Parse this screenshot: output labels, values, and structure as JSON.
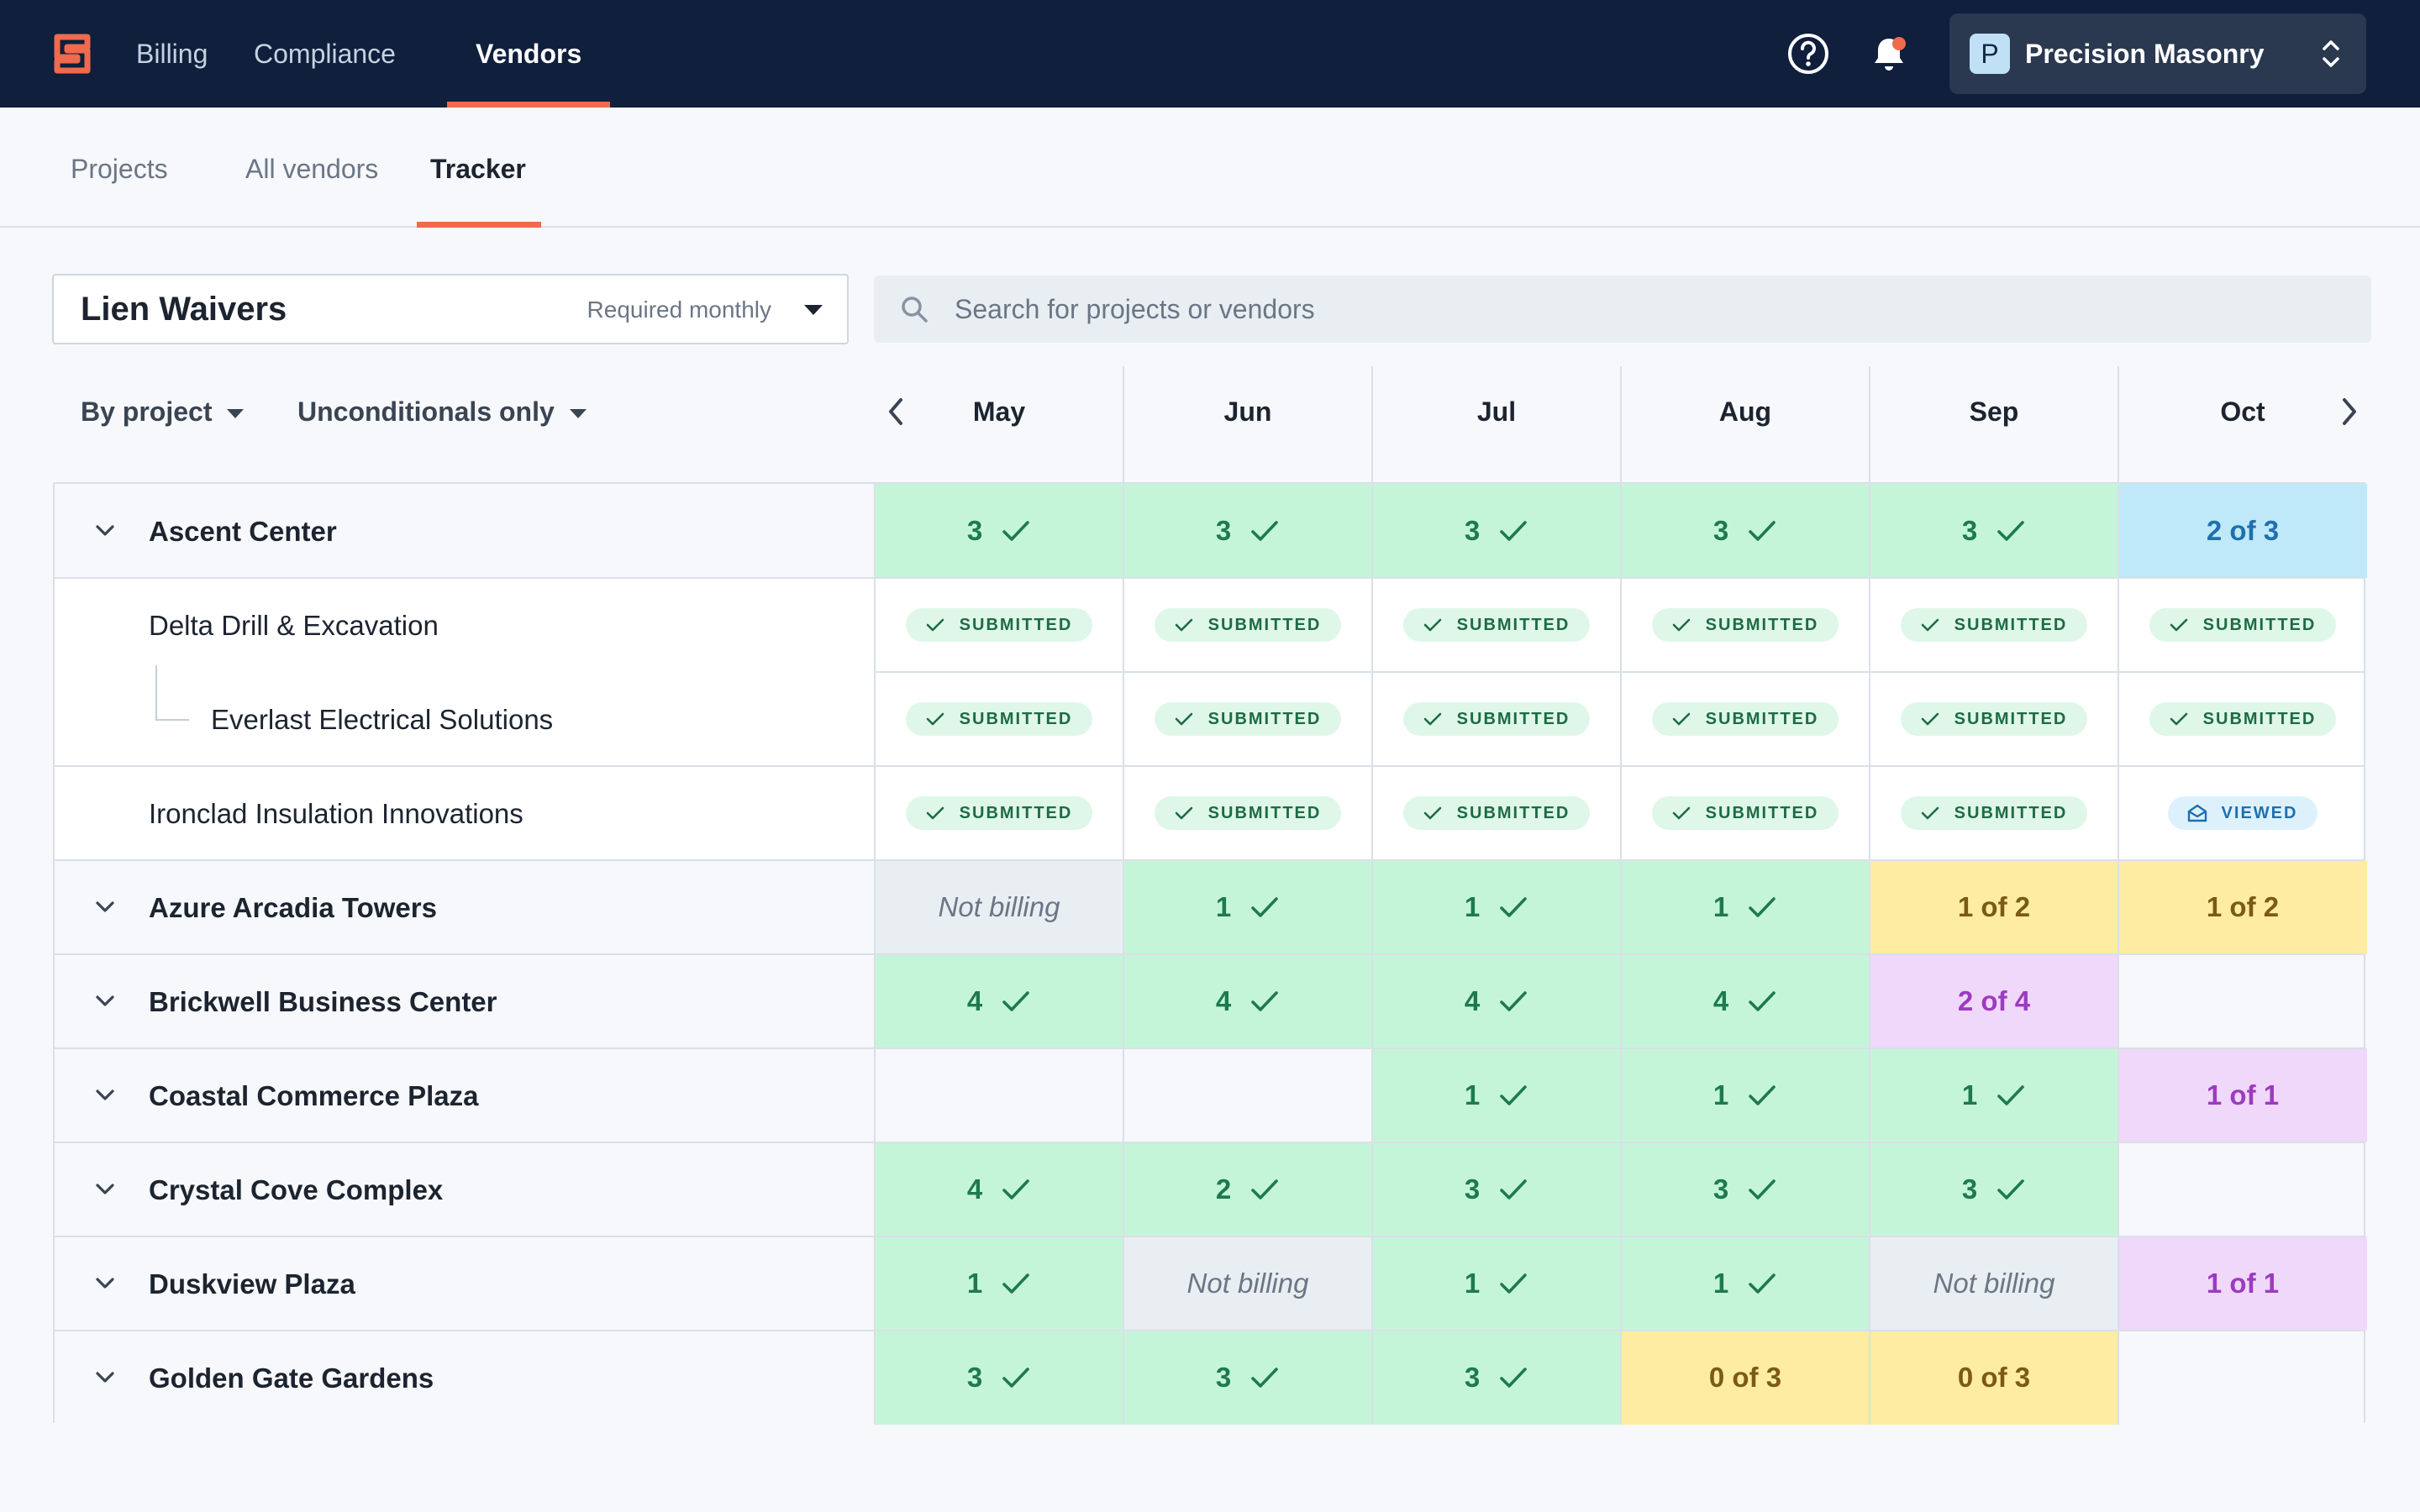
{
  "nav": {
    "items": [
      {
        "label": "Billing",
        "active": false
      },
      {
        "label": "Compliance",
        "active": false
      },
      {
        "label": "Vendors",
        "active": true
      }
    ],
    "org_initial": "P",
    "org_name": "Precision Masonry",
    "icons": [
      "logo-icon",
      "help-icon",
      "bell-icon",
      "chevron-updown-icon"
    ]
  },
  "subnav": {
    "items": [
      {
        "label": "Projects",
        "active": false
      },
      {
        "label": "All vendors",
        "active": false
      },
      {
        "label": "Tracker",
        "active": true
      }
    ]
  },
  "document_select": {
    "title": "Lien Waivers",
    "subtitle": "Required monthly"
  },
  "search": {
    "placeholder": "Search for projects or vendors",
    "value": ""
  },
  "filters": {
    "group_by": "By project",
    "waiver_type": "Unconditionals only"
  },
  "months": [
    "May",
    "Jun",
    "Jul",
    "Aug",
    "Sep",
    "Oct"
  ],
  "status_labels": {
    "submitted": "SUBMITTED",
    "viewed": "VIEWED",
    "not_billing": "Not billing"
  },
  "colors": {
    "accent": "#f06a4d",
    "navy": "#0f1f3c",
    "complete": "#c5f5d8",
    "in_progress": "#bfe9f8",
    "pending": "#fdeca2",
    "partial": "#f0d8fa",
    "not_billing": "#e9eef3"
  },
  "rows": [
    {
      "kind": "project",
      "name": "Ascent Center",
      "cells": [
        {
          "type": "complete",
          "count": "3"
        },
        {
          "type": "complete",
          "count": "3"
        },
        {
          "type": "complete",
          "count": "3"
        },
        {
          "type": "complete",
          "count": "3"
        },
        {
          "type": "complete",
          "count": "3"
        },
        {
          "type": "progress",
          "text": "2 of 3"
        }
      ]
    },
    {
      "kind": "vendor",
      "name": "Delta Drill & Excavation",
      "cells": [
        {
          "type": "submitted"
        },
        {
          "type": "submitted"
        },
        {
          "type": "submitted"
        },
        {
          "type": "submitted"
        },
        {
          "type": "submitted"
        },
        {
          "type": "submitted"
        }
      ]
    },
    {
      "kind": "subvendor",
      "name": "Everlast Electrical Solutions",
      "cells": [
        {
          "type": "submitted"
        },
        {
          "type": "submitted"
        },
        {
          "type": "submitted"
        },
        {
          "type": "submitted"
        },
        {
          "type": "submitted"
        },
        {
          "type": "submitted"
        }
      ]
    },
    {
      "kind": "vendor",
      "name": "Ironclad Insulation Innovations",
      "cells": [
        {
          "type": "submitted"
        },
        {
          "type": "submitted"
        },
        {
          "type": "submitted"
        },
        {
          "type": "submitted"
        },
        {
          "type": "submitted"
        },
        {
          "type": "viewed"
        }
      ]
    },
    {
      "kind": "project",
      "name": "Azure Arcadia Towers",
      "cells": [
        {
          "type": "not_billing"
        },
        {
          "type": "complete",
          "count": "1"
        },
        {
          "type": "complete",
          "count": "1"
        },
        {
          "type": "complete",
          "count": "1"
        },
        {
          "type": "pending",
          "text": "1 of 2"
        },
        {
          "type": "pending",
          "text": "1 of 2"
        }
      ]
    },
    {
      "kind": "project",
      "name": "Brickwell Business Center",
      "cells": [
        {
          "type": "complete",
          "count": "4"
        },
        {
          "type": "complete",
          "count": "4"
        },
        {
          "type": "complete",
          "count": "4"
        },
        {
          "type": "complete",
          "count": "4"
        },
        {
          "type": "partial",
          "text": "2 of 4"
        },
        {
          "type": "empty"
        }
      ]
    },
    {
      "kind": "project",
      "name": "Coastal Commerce Plaza",
      "cells": [
        {
          "type": "empty"
        },
        {
          "type": "empty"
        },
        {
          "type": "complete",
          "count": "1"
        },
        {
          "type": "complete",
          "count": "1"
        },
        {
          "type": "complete",
          "count": "1"
        },
        {
          "type": "partial",
          "text": "1 of 1"
        }
      ]
    },
    {
      "kind": "project",
      "name": "Crystal Cove Complex",
      "cells": [
        {
          "type": "complete",
          "count": "4"
        },
        {
          "type": "complete",
          "count": "2"
        },
        {
          "type": "complete",
          "count": "3"
        },
        {
          "type": "complete",
          "count": "3"
        },
        {
          "type": "complete",
          "count": "3"
        },
        {
          "type": "empty"
        }
      ]
    },
    {
      "kind": "project",
      "name": "Duskview Plaza",
      "cells": [
        {
          "type": "complete",
          "count": "1"
        },
        {
          "type": "not_billing"
        },
        {
          "type": "complete",
          "count": "1"
        },
        {
          "type": "complete",
          "count": "1"
        },
        {
          "type": "not_billing"
        },
        {
          "type": "partial",
          "text": "1 of 1"
        }
      ]
    },
    {
      "kind": "project",
      "name": "Golden Gate Gardens",
      "cells": [
        {
          "type": "complete",
          "count": "3"
        },
        {
          "type": "complete",
          "count": "3"
        },
        {
          "type": "complete",
          "count": "3"
        },
        {
          "type": "pending",
          "text": "0 of 3"
        },
        {
          "type": "pending",
          "text": "0 of 3"
        },
        {
          "type": "empty"
        }
      ]
    }
  ]
}
